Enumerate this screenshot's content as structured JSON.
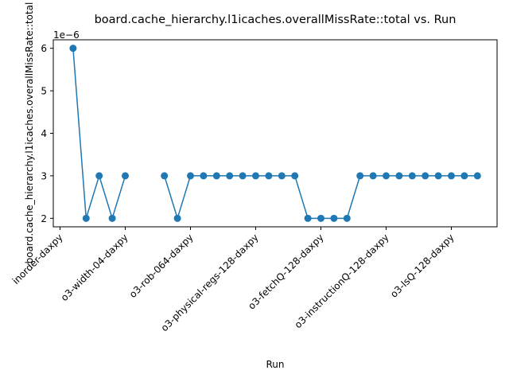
{
  "chart_data": {
    "type": "line",
    "title": "board.cache_hierarchy.l1icaches.overallMissRate::total vs. Run",
    "xlabel": "Run",
    "ylabel": "board.cache_hierarchy.l1icaches.overallMissRate::total",
    "y_offset_label": "1e−6",
    "ylim": [
      1.8,
      6.2
    ],
    "y_ticks": [
      2,
      3,
      4,
      5,
      6
    ],
    "y_tick_labels": [
      "2",
      "3",
      "4",
      "5",
      "6"
    ],
    "x_ticks": [
      0,
      5,
      10,
      15,
      20,
      25,
      30
    ],
    "x_tick_labels": [
      "inorder-daxpy",
      "o3-width-04-daxpy",
      "o3-rob-064-daxpy",
      "o3-physical-regs-128-daxpy",
      "o3-fetchQ-128-daxpy",
      "o3-instructionQ-128-daxpy",
      "o3-lsQ-128-daxpy"
    ],
    "grid": false,
    "color": "#1f77b4",
    "x": [
      1,
      2,
      3,
      4,
      5,
      6,
      7,
      8,
      9,
      10,
      11,
      12,
      13,
      14,
      15,
      16,
      17,
      18,
      19,
      20,
      21,
      22,
      23,
      24,
      25,
      26,
      27,
      28,
      29,
      30,
      31,
      32
    ],
    "values": [
      6,
      2,
      3,
      2,
      3,
      null,
      null,
      3,
      2,
      3,
      3,
      3,
      3,
      3,
      3,
      3,
      3,
      3,
      2,
      2,
      2,
      2,
      3,
      3,
      3,
      3,
      3,
      3,
      3,
      3,
      3,
      3
    ]
  }
}
